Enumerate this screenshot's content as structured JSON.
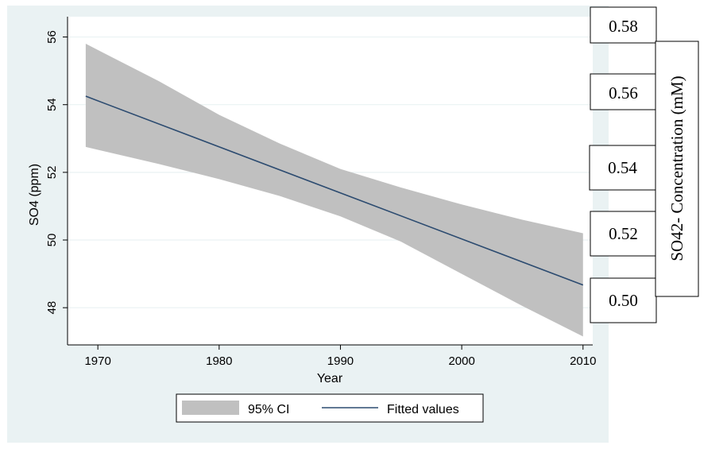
{
  "chart_data": {
    "type": "line",
    "xlabel": "Year",
    "ylabel": "SO4 (ppm)",
    "xlim": [
      1967.5,
      2010.8
    ],
    "ylim": [
      46.9,
      56.6
    ],
    "x_ticks": [
      "1970",
      "1980",
      "1990",
      "2000",
      "2010"
    ],
    "y_ticks": [
      "48",
      "50",
      "52",
      "54",
      "56"
    ],
    "grid": true,
    "legend_position": "bottom",
    "series": [
      {
        "name": "Fitted values",
        "kind": "line",
        "color": "#2c4b70",
        "x": [
          1969,
          2010
        ],
        "y": [
          54.25,
          48.67
        ]
      },
      {
        "name": "95% CI",
        "kind": "band",
        "color": "#c0c0c0",
        "x": [
          1969,
          1975,
          1980,
          1985,
          1990,
          1995,
          2000,
          2005,
          2010
        ],
        "lower": [
          52.75,
          52.25,
          51.8,
          51.3,
          50.7,
          49.95,
          49.0,
          48.05,
          47.15
        ],
        "upper": [
          55.8,
          54.7,
          53.7,
          52.85,
          52.1,
          51.55,
          51.05,
          50.6,
          50.2
        ]
      }
    ],
    "secondary_axis": {
      "label": "SO42- Concentration (mM)",
      "ticks": [
        "0.58",
        "0.56",
        "0.54",
        "0.52",
        "0.50"
      ]
    }
  },
  "colors": {
    "outer_background": "#eaf2f3",
    "plot_background": "#ffffff",
    "gridline": "#eaf2f3",
    "ci_band": "#c0c0c0",
    "fitted_line": "#2c4b70"
  }
}
